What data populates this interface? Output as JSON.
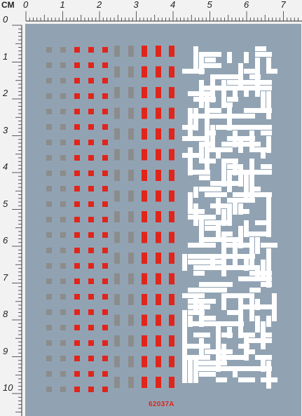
{
  "ruler": {
    "unit_label": "CM",
    "top_numbers": [
      "0",
      "1",
      "2",
      "3",
      "4",
      "5",
      "6",
      "7"
    ],
    "left_numbers": [
      "0",
      "1",
      "2",
      "3",
      "4",
      "5",
      "6",
      "7",
      "8",
      "9",
      "10"
    ],
    "color": "#333333"
  },
  "sheet": {
    "background": "#91a3b3",
    "product_code": "62037A",
    "code_color": "#e0251b"
  },
  "decal_colors": {
    "gray": "#8c8c8c",
    "red": "#e0251b",
    "white": "#ffffff"
  },
  "decal_groups": [
    {
      "name": "small-square-column-gray",
      "color": "gray",
      "shape": "small square"
    },
    {
      "name": "small-square-columns-red",
      "color": "red",
      "shape": "small square"
    },
    {
      "name": "tall-rectangle-columns-gray",
      "color": "gray",
      "shape": "tall rectangle"
    },
    {
      "name": "tall-rectangle-columns-red",
      "color": "red",
      "shape": "tall rectangle"
    },
    {
      "name": "maze-pattern",
      "color": "white",
      "shape": "maze strips"
    }
  ]
}
